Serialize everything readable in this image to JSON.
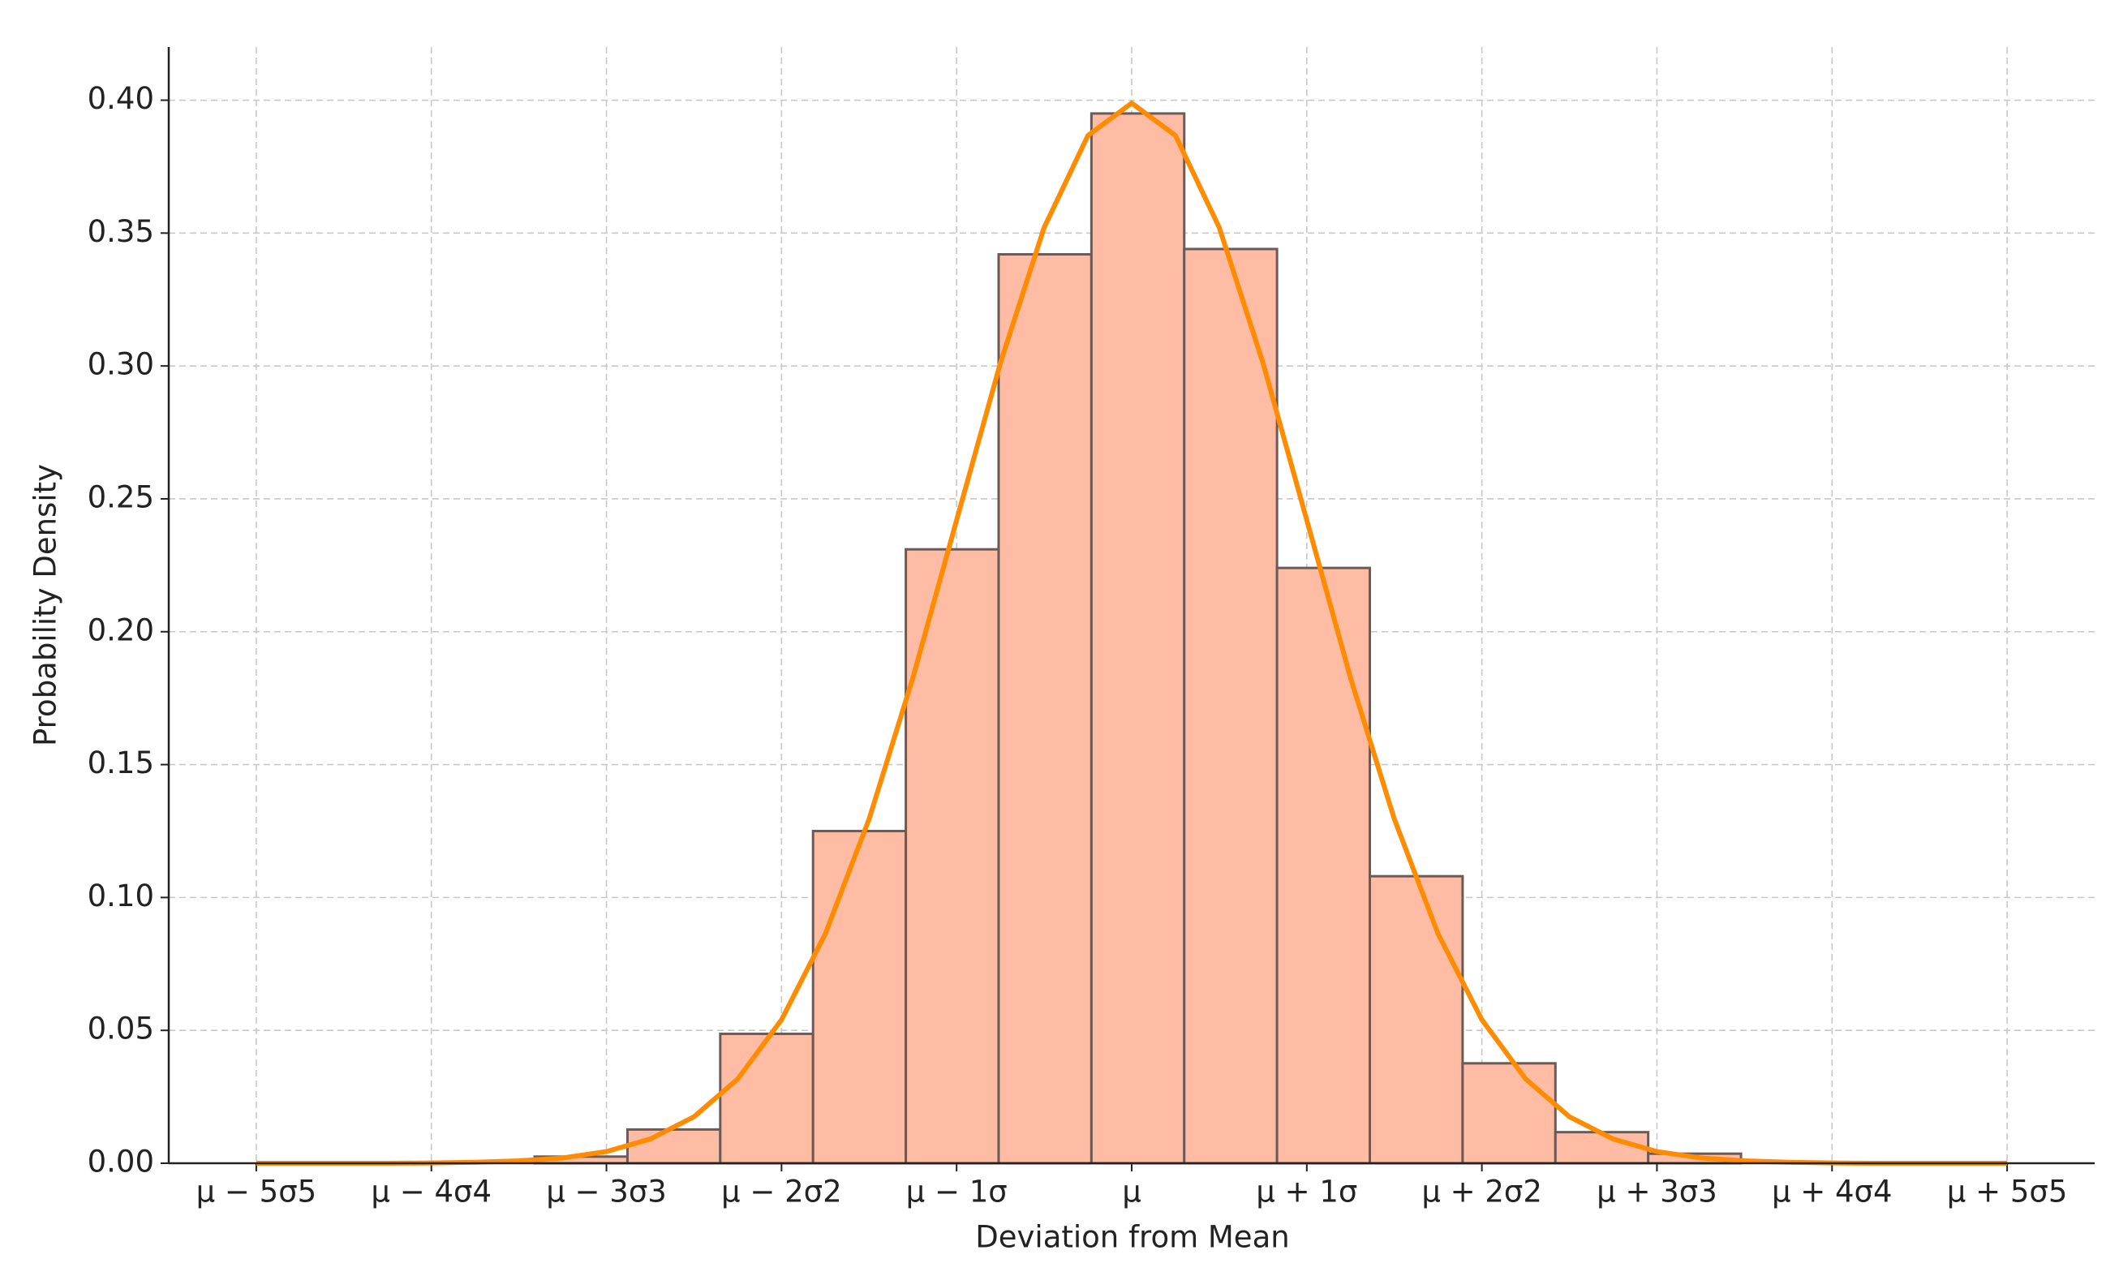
{
  "chart_data": {
    "type": "histogram",
    "xlabel": "Deviation from Mean",
    "ylabel": "Probability Density",
    "xlim": [
      -5.5,
      5.5
    ],
    "ylim": [
      0,
      0.42
    ],
    "xticks": [
      {
        "value": -5,
        "label": "μ − 5σ5"
      },
      {
        "value": -4,
        "label": "μ − 4σ4"
      },
      {
        "value": -3,
        "label": "μ − 3σ3"
      },
      {
        "value": -2,
        "label": "μ − 2σ2"
      },
      {
        "value": -1,
        "label": "μ − 1σ"
      },
      {
        "value": 0,
        "label": "μ"
      },
      {
        "value": 1,
        "label": "μ + 1σ"
      },
      {
        "value": 2,
        "label": "μ + 2σ2"
      },
      {
        "value": 3,
        "label": "μ + 3σ3"
      },
      {
        "value": 4,
        "label": "μ + 4σ4"
      },
      {
        "value": 5,
        "label": "μ + 5σ5"
      }
    ],
    "yticks": [
      {
        "value": 0,
        "label": "0.00"
      },
      0.05,
      {
        "value": 0.1,
        "label": "0.10"
      },
      0.15,
      {
        "value": 0.2,
        "label": "0.20"
      },
      0.25,
      {
        "value": 0.3,
        "label": "0.30"
      },
      0.35,
      {
        "value": 0.4,
        "label": "0.40"
      }
    ],
    "grid": true,
    "color": "#ffbca5",
    "edgecolor": "#6b5a55",
    "bins": [
      -3.41,
      -2.88,
      -2.35,
      -1.82,
      -1.29,
      -0.76,
      -0.23,
      0.3,
      0.83,
      1.36,
      1.89,
      2.42,
      2.95,
      3.48
    ],
    "values": [
      0.0025,
      0.0127,
      0.0487,
      0.125,
      0.231,
      0.342,
      0.395,
      0.344,
      0.224,
      0.108,
      0.0376,
      0.0117,
      0.0036
    ],
    "line": {
      "type": "line",
      "color": "#ff8c00",
      "x": [
        -5,
        -4.75,
        -4.5,
        -4.25,
        -4,
        -3.75,
        -3.5,
        -3.25,
        -3,
        -2.75,
        -2.5,
        -2.25,
        -2,
        -1.75,
        -1.5,
        -1.25,
        -1,
        -0.75,
        -0.5,
        -0.25,
        0,
        0.25,
        0.5,
        0.75,
        1,
        1.25,
        1.5,
        1.75,
        2,
        2.25,
        2.5,
        2.75,
        3,
        3.25,
        3.5,
        3.75,
        4,
        4.25,
        4.5,
        4.75,
        5
      ],
      "values": [
        0.0,
        0.0,
        0.0,
        0.0,
        0.0001,
        0.0004,
        0.0009,
        0.002,
        0.0044,
        0.0091,
        0.0175,
        0.0317,
        0.054,
        0.0863,
        0.1295,
        0.1826,
        0.242,
        0.3011,
        0.3521,
        0.3867,
        0.3989,
        0.3867,
        0.3521,
        0.3011,
        0.242,
        0.1826,
        0.1295,
        0.0863,
        0.054,
        0.0317,
        0.0175,
        0.0091,
        0.0044,
        0.002,
        0.0009,
        0.0004,
        0.0001,
        0.0,
        0.0,
        0.0,
        0.0
      ]
    }
  }
}
